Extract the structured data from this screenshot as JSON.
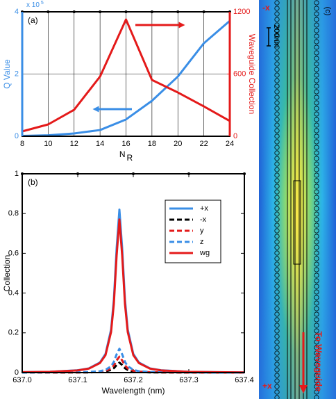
{
  "chart_data": [
    {
      "type": "line",
      "title": "(a)",
      "xlabel": "N",
      "xlabel_sub": "R",
      "ylabel": "Q Value",
      "ymultiplier": "x 10",
      "ymultiplier_exp": "5",
      "y2label": "Waveguide Collection",
      "x": [
        8,
        10,
        12,
        14,
        16,
        18,
        20,
        22,
        24
      ],
      "xlim": [
        8,
        24
      ],
      "xticks": [
        8,
        10,
        12,
        14,
        16,
        18,
        20,
        22,
        24
      ],
      "ylim": [
        0,
        4
      ],
      "yticks": [
        0,
        2,
        4
      ],
      "y2lim": [
        0,
        1200
      ],
      "y2ticks": [
        0,
        600,
        1200
      ],
      "ycolor": "#3a8ee6",
      "y2color": "#e41a1a",
      "grid": true,
      "series": [
        {
          "name": "Q Value",
          "color": "#3a8ee6",
          "values": [
            0.01,
            0.03,
            0.09,
            0.2,
            0.54,
            1.14,
            1.92,
            2.99,
            3.71
          ]
        },
        {
          "name": "Waveguide Collection",
          "color": "#e41a1a",
          "axis": "y2",
          "values": [
            47,
            114,
            255,
            576,
            1126,
            543,
            422,
            288,
            147
          ]
        }
      ]
    },
    {
      "type": "line",
      "title": "(b)",
      "xlabel": "Wavelength (nm)",
      "ylabel": "Collection",
      "x": [
        637.0,
        637.05,
        637.1,
        637.12,
        637.14,
        637.15,
        637.16,
        637.165,
        637.17,
        637.175,
        637.18,
        637.185,
        637.19,
        637.2,
        637.21,
        637.23,
        637.25,
        637.3,
        637.35,
        637.4
      ],
      "xlim": [
        637.0,
        637.4
      ],
      "xticks": [
        {
          "value": 637.0,
          "label": "637.0"
        },
        637.1,
        637.2,
        637.3,
        {
          "value": 637.4,
          "label": "637.4"
        }
      ],
      "ylim": [
        0,
        1
      ],
      "yticks": [
        0,
        0.2,
        0.4,
        0.6,
        0.8,
        1
      ],
      "grid": false,
      "legend": "upper right",
      "series": [
        {
          "name": "+x",
          "color": "#3a8ee6",
          "dash": false,
          "values": [
            0.002,
            0.004,
            0.012,
            0.021,
            0.051,
            0.094,
            0.217,
            0.368,
            0.626,
            0.82,
            0.626,
            0.368,
            0.217,
            0.094,
            0.051,
            0.021,
            0.012,
            0.004,
            0.002,
            0.001
          ]
        },
        {
          "name": "-x",
          "color": "#000000",
          "dash": true,
          "values": [
            0,
            0,
            0.001,
            0.001,
            0.003,
            0.006,
            0.013,
            0.022,
            0.038,
            0.05,
            0.038,
            0.022,
            0.013,
            0.006,
            0.003,
            0.001,
            0.001,
            0,
            0,
            0
          ]
        },
        {
          "name": "y",
          "color": "#e41a1a",
          "dash": true,
          "values": [
            0,
            0,
            0.001,
            0.002,
            0.005,
            0.009,
            0.021,
            0.036,
            0.061,
            0.08,
            0.061,
            0.036,
            0.021,
            0.009,
            0.005,
            0.002,
            0.001,
            0,
            0,
            0
          ]
        },
        {
          "name": "z",
          "color": "#3a8ee6",
          "dash": true,
          "values": [
            0,
            0.001,
            0.002,
            0.003,
            0.007,
            0.014,
            0.032,
            0.054,
            0.092,
            0.12,
            0.092,
            0.054,
            0.032,
            0.014,
            0.007,
            0.003,
            0.002,
            0.001,
            0,
            0
          ]
        },
        {
          "name": "wg",
          "color": "#e41a1a",
          "dash": false,
          "values": [
            0.002,
            0.004,
            0.011,
            0.02,
            0.048,
            0.088,
            0.204,
            0.345,
            0.588,
            0.77,
            0.588,
            0.345,
            0.204,
            0.088,
            0.048,
            0.02,
            0.011,
            0.004,
            0.002,
            0.001
          ]
        }
      ]
    }
  ],
  "panel_c": {
    "label": "(c)",
    "top_label": "-x",
    "scale_label": "200nm",
    "bottom_label": "+x",
    "annotation": "To Waveguide"
  }
}
